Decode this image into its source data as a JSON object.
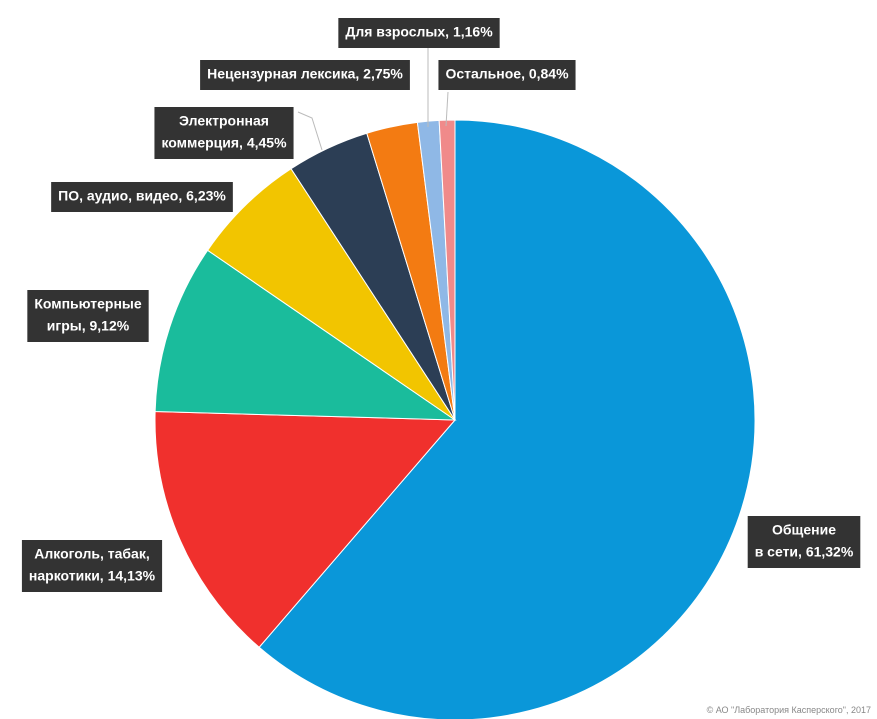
{
  "chart_data": {
    "type": "pie",
    "values": [
      61.32,
      14.13,
      9.12,
      6.23,
      4.45,
      2.75,
      1.16,
      0.84
    ],
    "value_labels": [
      [
        "Общение",
        "в сети, 61,32%"
      ],
      [
        "Алкоголь, табак,",
        "наркотики, 14,13%"
      ],
      [
        "Компьютерные",
        "игры, 9,12%"
      ],
      [
        "ПО, аудио, видео, 6,23%"
      ],
      [
        "Электронная",
        "коммерция, 4,45%"
      ],
      [
        "Нецензурная лексика, 2,75%"
      ],
      [
        "Для взрослых, 1,16%"
      ],
      [
        "Остальное, 0,84%"
      ]
    ],
    "colors": [
      "#0a97d9",
      "#f0302d",
      "#1abc9c",
      "#f2c500",
      "#2c3e55",
      "#f37b12",
      "#8fb8e6",
      "#f08a8a"
    ],
    "copyright": "© АО \"Лаборатория Касперского\", 2017"
  }
}
